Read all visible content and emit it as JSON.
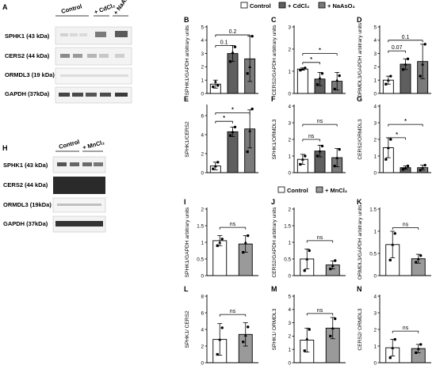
{
  "panel_letters": [
    "A",
    "B",
    "C",
    "D",
    "E",
    "F",
    "G",
    "H",
    "I",
    "J",
    "K",
    "L",
    "M",
    "N"
  ],
  "blot_a": {
    "groups": [
      "Control",
      "+ CdCl₂",
      "+ NaAsO₂"
    ],
    "rows": [
      "SPHK1 (43 kDa)",
      "CERS2 (44 kDa)",
      "ORMDL3 (19 kDa)",
      "GAPDH (37kDa)"
    ]
  },
  "blot_h": {
    "groups": [
      "Control",
      "+ MnCl₂"
    ],
    "rows": [
      "SPHK1 (43 kDa)",
      "CERS2 (44 kDa)",
      "ORMDL3 (19kDa)",
      "GAPDH (37kDa)"
    ]
  },
  "legend_top": [
    "Control",
    "+ CdCl₂",
    "+ NaAsO₂"
  ],
  "legend_bottom": [
    "Control",
    "+ MnCl₂"
  ],
  "colors": {
    "control": "#ffffff",
    "cd": "#5f5f5f",
    "as": "#7a7a7a",
    "mn": "#9a9a9a"
  },
  "chart_data": [
    {
      "panel": "B",
      "type": "bar",
      "ylabel": "SPHK1/GAPDH arbitrary units",
      "yticks": [
        0,
        1,
        2,
        3,
        4,
        5
      ],
      "ylim": [
        0,
        5
      ],
      "categories": [
        "Control",
        "+ CdCl₂",
        "+ NaAsO₂"
      ],
      "values": [
        0.7,
        3.0,
        2.6
      ],
      "errors": [
        0.3,
        0.6,
        1.7
      ],
      "points": [
        [
          0.5,
          0.9,
          0.6
        ],
        [
          2.4,
          3.1,
          3.5
        ],
        [
          1.5,
          2.0,
          4.3
        ]
      ],
      "annotations": [
        {
          "from": 0,
          "to": 1,
          "label": "0.1",
          "y": 3.6
        },
        {
          "from": 0,
          "to": 2,
          "label": "0.2",
          "y": 4.4
        }
      ]
    },
    {
      "panel": "C",
      "type": "bar",
      "ylabel": "CERS2/GAPDH arbitrary units",
      "yticks": [
        0,
        1,
        2,
        3
      ],
      "ylim": [
        0,
        3
      ],
      "categories": [
        "Control",
        "+ CdCl₂",
        "+ NaAsO₂"
      ],
      "values": [
        1.1,
        0.65,
        0.55
      ],
      "errors": [
        0.05,
        0.3,
        0.4
      ],
      "points": [
        [
          1.05,
          1.1,
          1.15
        ],
        [
          0.4,
          0.7,
          0.9
        ],
        [
          0.2,
          0.6,
          0.8
        ]
      ],
      "annotations": [
        {
          "from": 0,
          "to": 1,
          "label": "*",
          "y": 1.4
        },
        {
          "from": 0,
          "to": 2,
          "label": "*",
          "y": 1.8
        }
      ]
    },
    {
      "panel": "D",
      "type": "bar",
      "ylabel": "ORMDL3/GAPDH arbitrary units",
      "yticks": [
        0,
        1,
        2,
        3,
        4,
        5
      ],
      "ylim": [
        0,
        5
      ],
      "categories": [
        "Control",
        "+ CdCl₂",
        "+ NaAsO₂"
      ],
      "values": [
        1.0,
        2.2,
        2.4
      ],
      "errors": [
        0.3,
        0.4,
        1.3
      ],
      "points": [
        [
          0.7,
          1.0,
          1.3
        ],
        [
          1.8,
          2.2,
          2.6
        ],
        [
          1.3,
          2.2,
          3.7
        ]
      ],
      "annotations": [
        {
          "from": 0,
          "to": 1,
          "label": "0.07",
          "y": 3.2
        },
        {
          "from": 0,
          "to": 2,
          "label": "0.1",
          "y": 4.0
        }
      ]
    },
    {
      "panel": "E",
      "type": "bar",
      "ylabel": "SPHK1/CERS2",
      "yticks": [
        0,
        2,
        4,
        6
      ],
      "ylim": [
        0,
        7
      ],
      "categories": [
        "Control",
        "+ CdCl₂",
        "+ NaAsO₂"
      ],
      "values": [
        0.7,
        4.3,
        4.6
      ],
      "errors": [
        0.4,
        0.5,
        2.0
      ],
      "points": [
        [
          0.4,
          0.7,
          1.1
        ],
        [
          3.9,
          4.3,
          4.8
        ],
        [
          2.2,
          4.4,
          6.7
        ]
      ],
      "annotations": [
        {
          "from": 0,
          "to": 1,
          "label": "*",
          "y": 5.4
        },
        {
          "from": 0,
          "to": 2,
          "label": "*",
          "y": 6.3
        }
      ]
    },
    {
      "panel": "F",
      "type": "bar",
      "ylabel": "SPHK1/ORMDL3",
      "yticks": [
        0,
        1,
        2,
        3,
        4
      ],
      "ylim": [
        0,
        4
      ],
      "categories": [
        "Control",
        "+ CdCl₂",
        "+ NaAsO₂"
      ],
      "values": [
        0.8,
        1.3,
        0.9
      ],
      "errors": [
        0.3,
        0.35,
        0.55
      ],
      "points": [
        [
          0.5,
          0.8,
          1.0
        ],
        [
          1.0,
          1.3,
          1.6
        ],
        [
          0.4,
          0.9,
          1.4
        ]
      ],
      "annotations": [
        {
          "from": 0,
          "to": 1,
          "label": "ns",
          "y": 2.0
        },
        {
          "from": 0,
          "to": 2,
          "label": "ns",
          "y": 2.9
        }
      ]
    },
    {
      "panel": "G",
      "type": "bar",
      "ylabel": "CERS2/ORMDL3",
      "yticks": [
        0,
        1,
        2,
        3,
        4
      ],
      "ylim": [
        0,
        4
      ],
      "categories": [
        "Control",
        "+ CdCl₂",
        "+ NaAsO₂"
      ],
      "values": [
        1.5,
        0.3,
        0.3
      ],
      "errors": [
        0.6,
        0.1,
        0.15
      ],
      "points": [
        [
          0.8,
          1.5,
          2.0
        ],
        [
          0.2,
          0.3,
          0.4
        ],
        [
          0.15,
          0.3,
          0.45
        ]
      ],
      "annotations": [
        {
          "from": 0,
          "to": 1,
          "label": "*",
          "y": 2.1
        },
        {
          "from": 0,
          "to": 2,
          "label": "*",
          "y": 2.9
        }
      ]
    },
    {
      "panel": "I",
      "type": "bar",
      "ylabel": "SPHK1/GAPDH arbitrary units",
      "yticks": [
        0.0,
        0.5,
        1.0,
        1.5,
        2.0
      ],
      "ylim": [
        0,
        2
      ],
      "categories": [
        "Control",
        "+ MnCl₂"
      ],
      "values": [
        1.05,
        0.95
      ],
      "errors": [
        0.15,
        0.25
      ],
      "points": [
        [
          0.9,
          1.0,
          1.1
        ],
        [
          0.7,
          1.0,
          1.2
        ]
      ],
      "annotations": [
        {
          "from": 0,
          "to": 1,
          "label": "ns",
          "y": 1.45
        }
      ]
    },
    {
      "panel": "J",
      "type": "bar",
      "ylabel": "CERS2/GAPDH arbitrary units",
      "yticks": [
        0.0,
        0.5,
        1.0,
        1.5,
        2.0
      ],
      "ylim": [
        0,
        2
      ],
      "categories": [
        "Control",
        "+ MnCl₂"
      ],
      "values": [
        0.5,
        0.32
      ],
      "errors": [
        0.3,
        0.12
      ],
      "points": [
        [
          0.15,
          0.5,
          0.75
        ],
        [
          0.2,
          0.3,
          0.45
        ]
      ],
      "annotations": [
        {
          "from": 0,
          "to": 1,
          "label": "ns",
          "y": 1.05
        }
      ]
    },
    {
      "panel": "K",
      "type": "bar",
      "ylabel": "ORMDL3/GAPDH arbitrary units",
      "yticks": [
        0.0,
        0.5,
        1.0,
        1.5
      ],
      "ylim": [
        0,
        1.5
      ],
      "categories": [
        "Control",
        "+ MnCl₂"
      ],
      "values": [
        0.7,
        0.38
      ],
      "errors": [
        0.3,
        0.1
      ],
      "points": [
        [
          0.35,
          0.7,
          0.95
        ],
        [
          0.3,
          0.38,
          0.45
        ]
      ],
      "annotations": [
        {
          "from": 0,
          "to": 1,
          "label": "ns",
          "y": 1.08
        }
      ]
    },
    {
      "panel": "L",
      "type": "bar",
      "ylabel": "SPHK1/ CERS2",
      "yticks": [
        0,
        2,
        4,
        6,
        8
      ],
      "ylim": [
        0,
        8
      ],
      "categories": [
        "Control",
        "+ MnCl₂"
      ],
      "values": [
        2.8,
        3.4
      ],
      "errors": [
        1.9,
        1.4
      ],
      "points": [
        [
          1.0,
          2.8,
          4.2
        ],
        [
          2.5,
          3.3,
          4.3
        ]
      ],
      "annotations": [
        {
          "from": 0,
          "to": 1,
          "label": "ns",
          "y": 5.8
        }
      ]
    },
    {
      "panel": "M",
      "type": "bar",
      "ylabel": "SPHK1/ ORMDL3",
      "yticks": [
        0,
        1,
        2,
        3,
        4,
        5
      ],
      "ylim": [
        0,
        5
      ],
      "categories": [
        "Control",
        "+ MnCl₂"
      ],
      "values": [
        1.7,
        2.6
      ],
      "errors": [
        0.9,
        0.8
      ],
      "points": [
        [
          0.9,
          1.8,
          2.5
        ],
        [
          2.0,
          2.6,
          3.3
        ]
      ],
      "annotations": [
        {
          "from": 0,
          "to": 1,
          "label": "ns",
          "y": 3.7
        }
      ]
    },
    {
      "panel": "N",
      "type": "bar",
      "ylabel": "CERS2/ ORMDL3",
      "yticks": [
        0,
        1,
        2,
        3,
        4
      ],
      "ylim": [
        0,
        4
      ],
      "categories": [
        "Control",
        "+ MnCl₂"
      ],
      "values": [
        0.9,
        0.85
      ],
      "errors": [
        0.5,
        0.25
      ],
      "points": [
        [
          0.3,
          0.9,
          1.4
        ],
        [
          0.6,
          0.85,
          1.1
        ]
      ],
      "annotations": [
        {
          "from": 0,
          "to": 1,
          "label": "ns",
          "y": 1.9
        }
      ]
    }
  ]
}
